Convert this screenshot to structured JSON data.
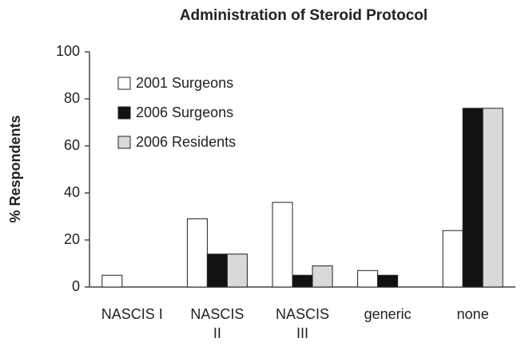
{
  "chart_data": {
    "type": "bar",
    "title": "Administration of Steroid Protocol",
    "ylabel": "% Respondents",
    "categories": [
      "NASCIS I",
      "NASCIS II",
      "NASCIS III",
      "generic",
      "none"
    ],
    "series": [
      {
        "name": "2001 Surgeons",
        "color": "#ffffff",
        "values": [
          5,
          29,
          36,
          7,
          24
        ]
      },
      {
        "name": "2006 Surgeons",
        "color": "#111111",
        "values": [
          0,
          14,
          5,
          5,
          76
        ]
      },
      {
        "name": "2006 Residents",
        "color": "#d9d9d9",
        "values": [
          0,
          14,
          9,
          0,
          76
        ]
      }
    ],
    "ylim": [
      0,
      100
    ],
    "yticks": [
      0,
      20,
      40,
      60,
      80,
      100
    ],
    "grid": false,
    "legend": "upper left"
  }
}
